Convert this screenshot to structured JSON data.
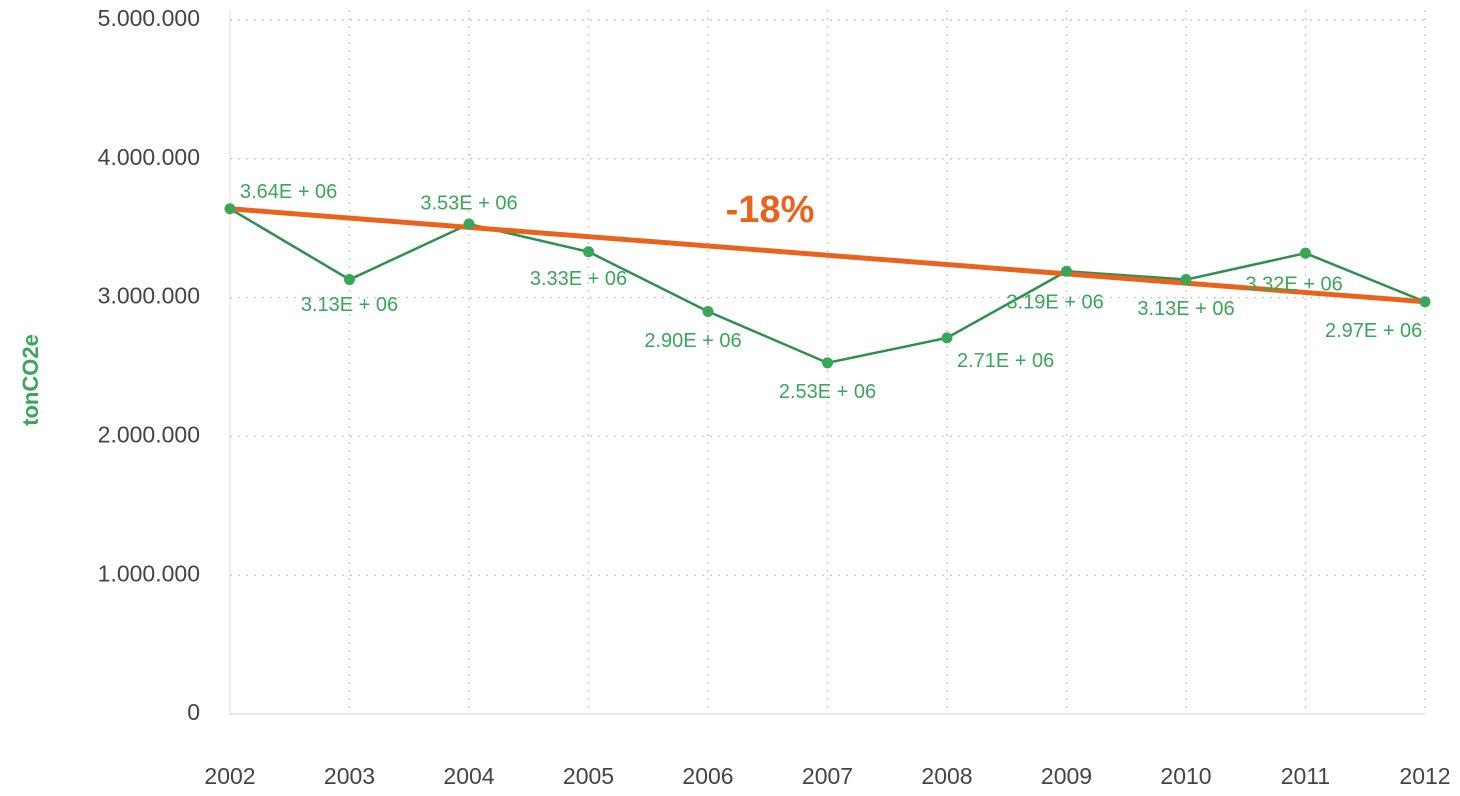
{
  "chart_data": {
    "type": "line",
    "y_label": "tonCO2e",
    "categories": [
      "2002",
      "2003",
      "2004",
      "2005",
      "2006",
      "2007",
      "2008",
      "2009",
      "2010",
      "2011",
      "2012"
    ],
    "series": [
      {
        "name": "tonCO2e",
        "color": "#2e8f4e",
        "values": [
          3640000,
          3130000,
          3530000,
          3330000,
          2900000,
          2530000,
          2710000,
          3190000,
          3130000,
          3320000,
          2970000
        ],
        "value_labels": [
          "3.64E + 06",
          "3.13E + 06",
          "3.53E + 06",
          "3.33E + 06",
          "2.90E + 06",
          "2.53E + 06",
          "2.71E + 06",
          "3.19E + 06",
          "3.13E + 06",
          "3.32E + 06",
          "2.97E + 06"
        ]
      }
    ],
    "trend": {
      "values": [
        3640000,
        2970000
      ],
      "color": "#e8641e",
      "label": "-18%"
    },
    "ylim": [
      0,
      5000000
    ],
    "yticks": [
      {
        "value": 0,
        "label": "0"
      },
      {
        "value": 1000000,
        "label": "1.000.000"
      },
      {
        "value": 2000000,
        "label": "2.000.000"
      },
      {
        "value": 3000000,
        "label": "3.000.000"
      },
      {
        "value": 4000000,
        "label": "4.000.000"
      },
      {
        "value": 5000000,
        "label": "5.000.000"
      }
    ],
    "grid": true
  }
}
